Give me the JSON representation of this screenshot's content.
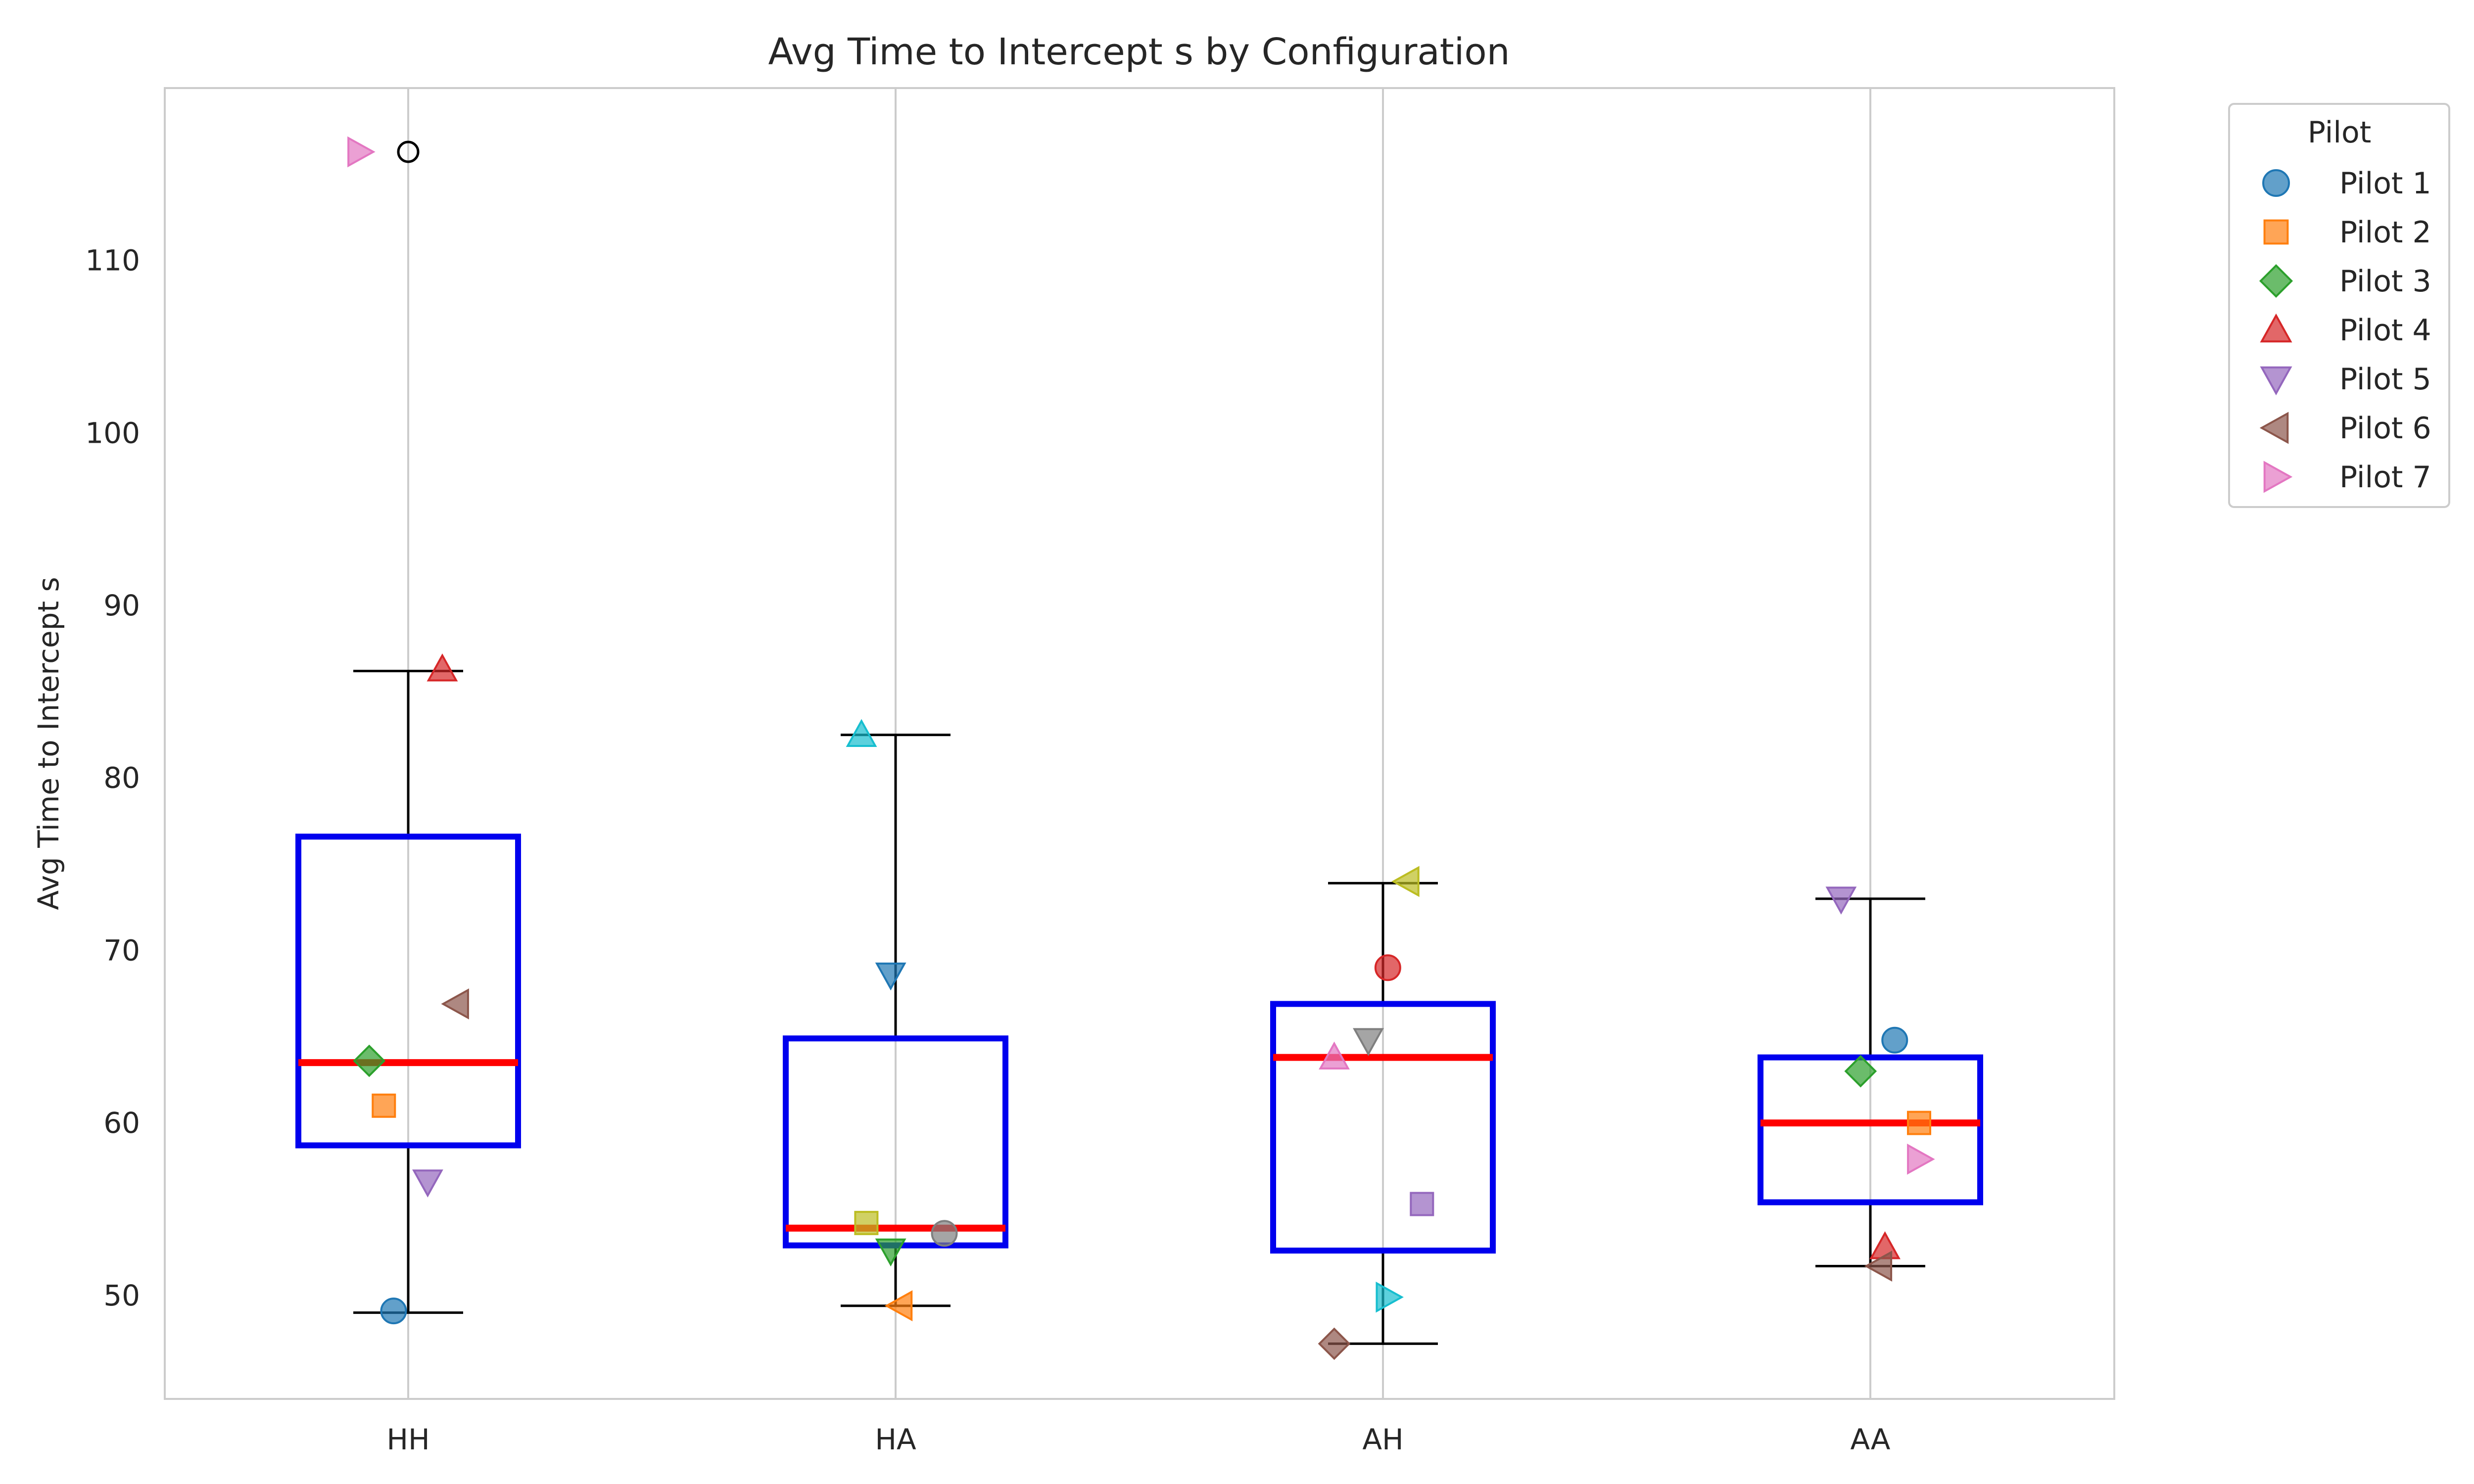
{
  "chart_data": {
    "type": "box",
    "title": "Avg Time to Intercept s by Configuration",
    "xlabel": "",
    "ylabel": "Avg Time to Intercept s",
    "categories": [
      "HH",
      "HA",
      "AH",
      "AA"
    ],
    "ylim": [
      44,
      120
    ],
    "yticks": [
      50,
      60,
      70,
      80,
      90,
      100,
      110
    ],
    "grid": "vertical",
    "legend": {
      "title": "Pilot",
      "placement": "outside-top-right"
    },
    "boxes": [
      {
        "category": "HH",
        "whisker_low": 49.0,
        "q1": 58.7,
        "median": 63.5,
        "q3": 76.6,
        "whisker_high": 86.2,
        "outliers": [
          116.3
        ]
      },
      {
        "category": "HA",
        "whisker_low": 49.4,
        "q1": 52.9,
        "median": 53.9,
        "q3": 64.9,
        "whisker_high": 82.5,
        "outliers": []
      },
      {
        "category": "AH",
        "whisker_low": 47.2,
        "q1": 52.6,
        "median": 63.8,
        "q3": 66.9,
        "whisker_high": 73.9,
        "outliers": []
      },
      {
        "category": "AA",
        "whisker_low": 51.7,
        "q1": 55.4,
        "median": 60.0,
        "q3": 63.8,
        "whisker_high": 73.0,
        "outliers": []
      }
    ],
    "points": [
      {
        "category": "HH",
        "jitter": -0.03,
        "y": 49.1,
        "color": "#1f77b4",
        "marker": "circle"
      },
      {
        "category": "HH",
        "jitter": -0.05,
        "y": 61.0,
        "color": "#ff7f0e",
        "marker": "square"
      },
      {
        "category": "HH",
        "jitter": -0.08,
        "y": 63.6,
        "color": "#2ca02c",
        "marker": "diamond"
      },
      {
        "category": "HH",
        "jitter": 0.07,
        "y": 86.3,
        "color": "#d62728",
        "marker": "triangle-up"
      },
      {
        "category": "HH",
        "jitter": 0.04,
        "y": 56.6,
        "color": "#9467bd",
        "marker": "triangle-down"
      },
      {
        "category": "HH",
        "jitter": 0.1,
        "y": 66.9,
        "color": "#8c564b",
        "marker": "triangle-left"
      },
      {
        "category": "HH",
        "jitter": -0.1,
        "y": 116.3,
        "color": "#e377c2",
        "marker": "triangle-right"
      },
      {
        "category": "HA",
        "jitter": 0.01,
        "y": 49.4,
        "color": "#ff7f0e",
        "marker": "triangle-left"
      },
      {
        "category": "HA",
        "jitter": -0.01,
        "y": 52.6,
        "color": "#2ca02c",
        "marker": "triangle-down"
      },
      {
        "category": "HA",
        "jitter": -0.06,
        "y": 54.2,
        "color": "#bcbd22",
        "marker": "square"
      },
      {
        "category": "HA",
        "jitter": 0.1,
        "y": 53.6,
        "color": "#7f7f7f",
        "marker": "circle"
      },
      {
        "category": "HA",
        "jitter": -0.07,
        "y": 82.5,
        "color": "#17becf",
        "marker": "triangle-up"
      },
      {
        "category": "HA",
        "jitter": -0.01,
        "y": 68.6,
        "color": "#1f77b4",
        "marker": "triangle-down"
      },
      {
        "category": "AH",
        "jitter": 0.01,
        "y": 69.0,
        "color": "#d62728",
        "marker": "circle"
      },
      {
        "category": "AH",
        "jitter": 0.08,
        "y": 55.3,
        "color": "#9467bd",
        "marker": "square"
      },
      {
        "category": "AH",
        "jitter": -0.1,
        "y": 47.2,
        "color": "#8c564b",
        "marker": "diamond"
      },
      {
        "category": "AH",
        "jitter": -0.1,
        "y": 63.8,
        "color": "#e377c2",
        "marker": "triangle-up"
      },
      {
        "category": "AH",
        "jitter": -0.03,
        "y": 64.8,
        "color": "#7f7f7f",
        "marker": "triangle-down"
      },
      {
        "category": "AH",
        "jitter": 0.05,
        "y": 74.0,
        "color": "#bcbd22",
        "marker": "triangle-left"
      },
      {
        "category": "AH",
        "jitter": 0.01,
        "y": 49.9,
        "color": "#17becf",
        "marker": "triangle-right"
      },
      {
        "category": "AA",
        "jitter": 0.05,
        "y": 64.8,
        "color": "#1f77b4",
        "marker": "circle"
      },
      {
        "category": "AA",
        "jitter": 0.1,
        "y": 60.0,
        "color": "#ff7f0e",
        "marker": "square"
      },
      {
        "category": "AA",
        "jitter": -0.02,
        "y": 63.0,
        "color": "#2ca02c",
        "marker": "diamond"
      },
      {
        "category": "AA",
        "jitter": 0.03,
        "y": 52.8,
        "color": "#d62728",
        "marker": "triangle-up"
      },
      {
        "category": "AA",
        "jitter": -0.06,
        "y": 73.0,
        "color": "#9467bd",
        "marker": "triangle-down"
      },
      {
        "category": "AA",
        "jitter": 0.02,
        "y": 51.7,
        "color": "#8c564b",
        "marker": "triangle-left"
      },
      {
        "category": "AA",
        "jitter": 0.1,
        "y": 57.9,
        "color": "#e377c2",
        "marker": "triangle-right"
      }
    ],
    "legend_entries": [
      {
        "label": "Pilot 1",
        "color": "#1f77b4",
        "marker": "circle"
      },
      {
        "label": "Pilot 2",
        "color": "#ff7f0e",
        "marker": "square"
      },
      {
        "label": "Pilot 3",
        "color": "#2ca02c",
        "marker": "diamond"
      },
      {
        "label": "Pilot 4",
        "color": "#d62728",
        "marker": "triangle-up"
      },
      {
        "label": "Pilot 5",
        "color": "#9467bd",
        "marker": "triangle-down"
      },
      {
        "label": "Pilot 6",
        "color": "#8c564b",
        "marker": "triangle-left"
      },
      {
        "label": "Pilot 7",
        "color": "#e377c2",
        "marker": "triangle-right"
      }
    ],
    "colors": {
      "box": "#0000ee",
      "median": "#ff0000",
      "whisker": "#000000",
      "grid": "#cccccc",
      "frame": "#cccccc"
    }
  }
}
